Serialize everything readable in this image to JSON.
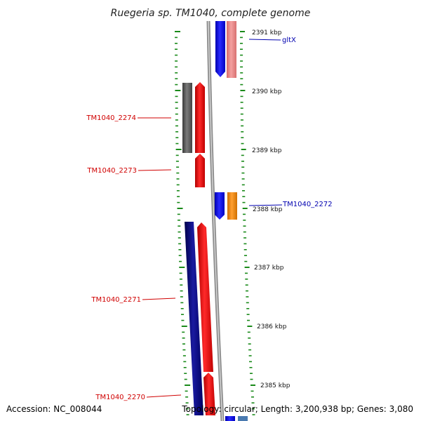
{
  "title": "Ruegeria sp. TM1040, complete genome",
  "footer": {
    "accession": "Accession: NC_008044",
    "topology": "Topology: circular; Length: 3,200,938 bp; Genes: 3,080"
  },
  "scale_labels": [
    "2391 kbp",
    "2390 kbp",
    "2389 kbp",
    "2388 kbp",
    "2387 kbp",
    "2386 kbp",
    "2385 kbp"
  ],
  "gene_labels": {
    "left": [
      "TM1040_2274",
      "TM1040_2273",
      "TM1040_2271",
      "TM1040_2270"
    ],
    "right": [
      "gltX",
      "TM1040_2272"
    ]
  },
  "colors": {
    "backbone": "#808080",
    "tick": "#1a8a1a",
    "gene_red": "#ff0000",
    "gene_blue": "#0000ff",
    "gene_pink": "#f08080",
    "gene_gray": "#5a5a5a",
    "gene_navy": "#000080",
    "gene_orange": "#ff8c00",
    "label_left": "#d00000",
    "label_right": "#0000b0"
  }
}
